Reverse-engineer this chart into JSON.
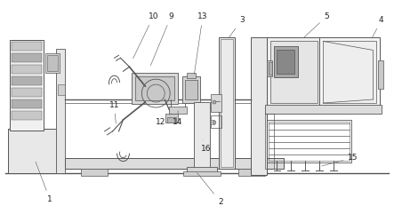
{
  "bg_color": "#ffffff",
  "line_color": "#555555",
  "fig_width": 4.43,
  "fig_height": 2.41,
  "dpi": 100,
  "font_size": 6.5
}
